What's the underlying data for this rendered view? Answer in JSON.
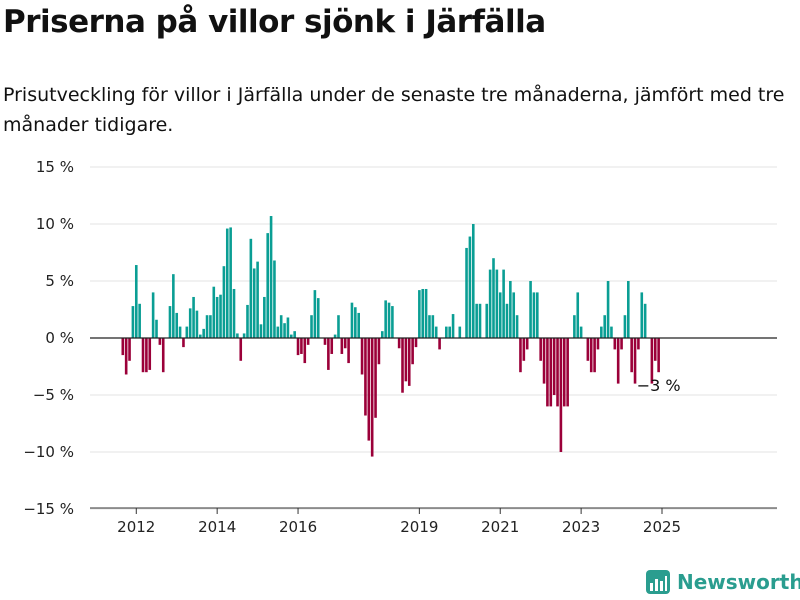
{
  "header": {
    "title": "Priserna på villor sjönk i Järfälla",
    "subtitle": "Prisutveckling för villor i Järfälla under de senaste tre månaderna, jämfört med tre månader tidigare."
  },
  "brand": {
    "name": "Newsworthy",
    "icon": "newsworthy-logo-icon"
  },
  "colors": {
    "positive": "#0a9e94",
    "negative": "#9b0039",
    "grid": "#e3e3e3",
    "zero": "#222222"
  },
  "chart_data": {
    "type": "bar",
    "x_start": "2011-09",
    "x_step": "month",
    "ylim": [
      -15,
      15
    ],
    "y_ticks": [
      15,
      10,
      5,
      0,
      -5,
      -10,
      -15
    ],
    "y_tick_labels": [
      "15 %",
      "10 %",
      "5 %",
      "0 %",
      "−5 %",
      "−10 %",
      "−15 %"
    ],
    "x_ticks": [
      "2012",
      "2014",
      "2016",
      "2019",
      "2021",
      "2023",
      "2025"
    ],
    "last_label": "−3 %",
    "values": [
      -1.5,
      -3.2,
      -2.0,
      2.8,
      6.4,
      3.0,
      -3.0,
      -3.0,
      -2.8,
      4.0,
      1.6,
      -0.6,
      -3.0,
      0,
      2.8,
      5.6,
      2.2,
      1.0,
      -0.8,
      1.0,
      2.6,
      3.6,
      2.4,
      0.3,
      0.8,
      2.0,
      2.0,
      4.5,
      3.6,
      3.8,
      6.3,
      9.6,
      9.7,
      4.3,
      0.4,
      -2.0,
      0.4,
      2.9,
      8.7,
      6.1,
      6.7,
      1.2,
      3.6,
      9.2,
      10.7,
      6.8,
      1.0,
      2.0,
      1.3,
      1.8,
      0.3,
      0.6,
      -1.5,
      -1.4,
      -2.2,
      -0.6,
      2.0,
      4.2,
      3.5,
      0,
      -0.6,
      -2.8,
      -1.4,
      0.3,
      2.0,
      -1.4,
      -0.9,
      -2.2,
      3.1,
      2.7,
      2.2,
      -3.2,
      -6.8,
      -9.0,
      -10.4,
      -7.0,
      -2.3,
      0.6,
      3.3,
      3.1,
      2.8,
      0,
      -0.9,
      -4.8,
      -3.8,
      -4.2,
      -2.3,
      -0.8,
      4.2,
      4.3,
      4.3,
      2.0,
      2.0,
      1.0,
      -1.0,
      0,
      1.0,
      1.0,
      2.1,
      0,
      1.0,
      0,
      7.9,
      8.9,
      10.0,
      3.0,
      3.0,
      0,
      3.0,
      6.0,
      7.0,
      6.0,
      4.0,
      6.0,
      3.0,
      5.0,
      4.0,
      2.0,
      -3.0,
      -2.0,
      -1.0,
      5.0,
      4.0,
      4.0,
      -2.0,
      -4.0,
      -6.0,
      -6.0,
      -5.0,
      -6.0,
      -10.0,
      -6.0,
      -6.0,
      0,
      2.0,
      4.0,
      1.0,
      0,
      -2.0,
      -3.0,
      -3.0,
      -1.0,
      1.0,
      2.0,
      5.0,
      1.0,
      -1.0,
      -4.0,
      -1.0,
      2.0,
      5.0,
      -3.0,
      -4.0,
      -1.0,
      4.0,
      3.0,
      0,
      -4.0,
      -2.0,
      -3.0
    ]
  }
}
